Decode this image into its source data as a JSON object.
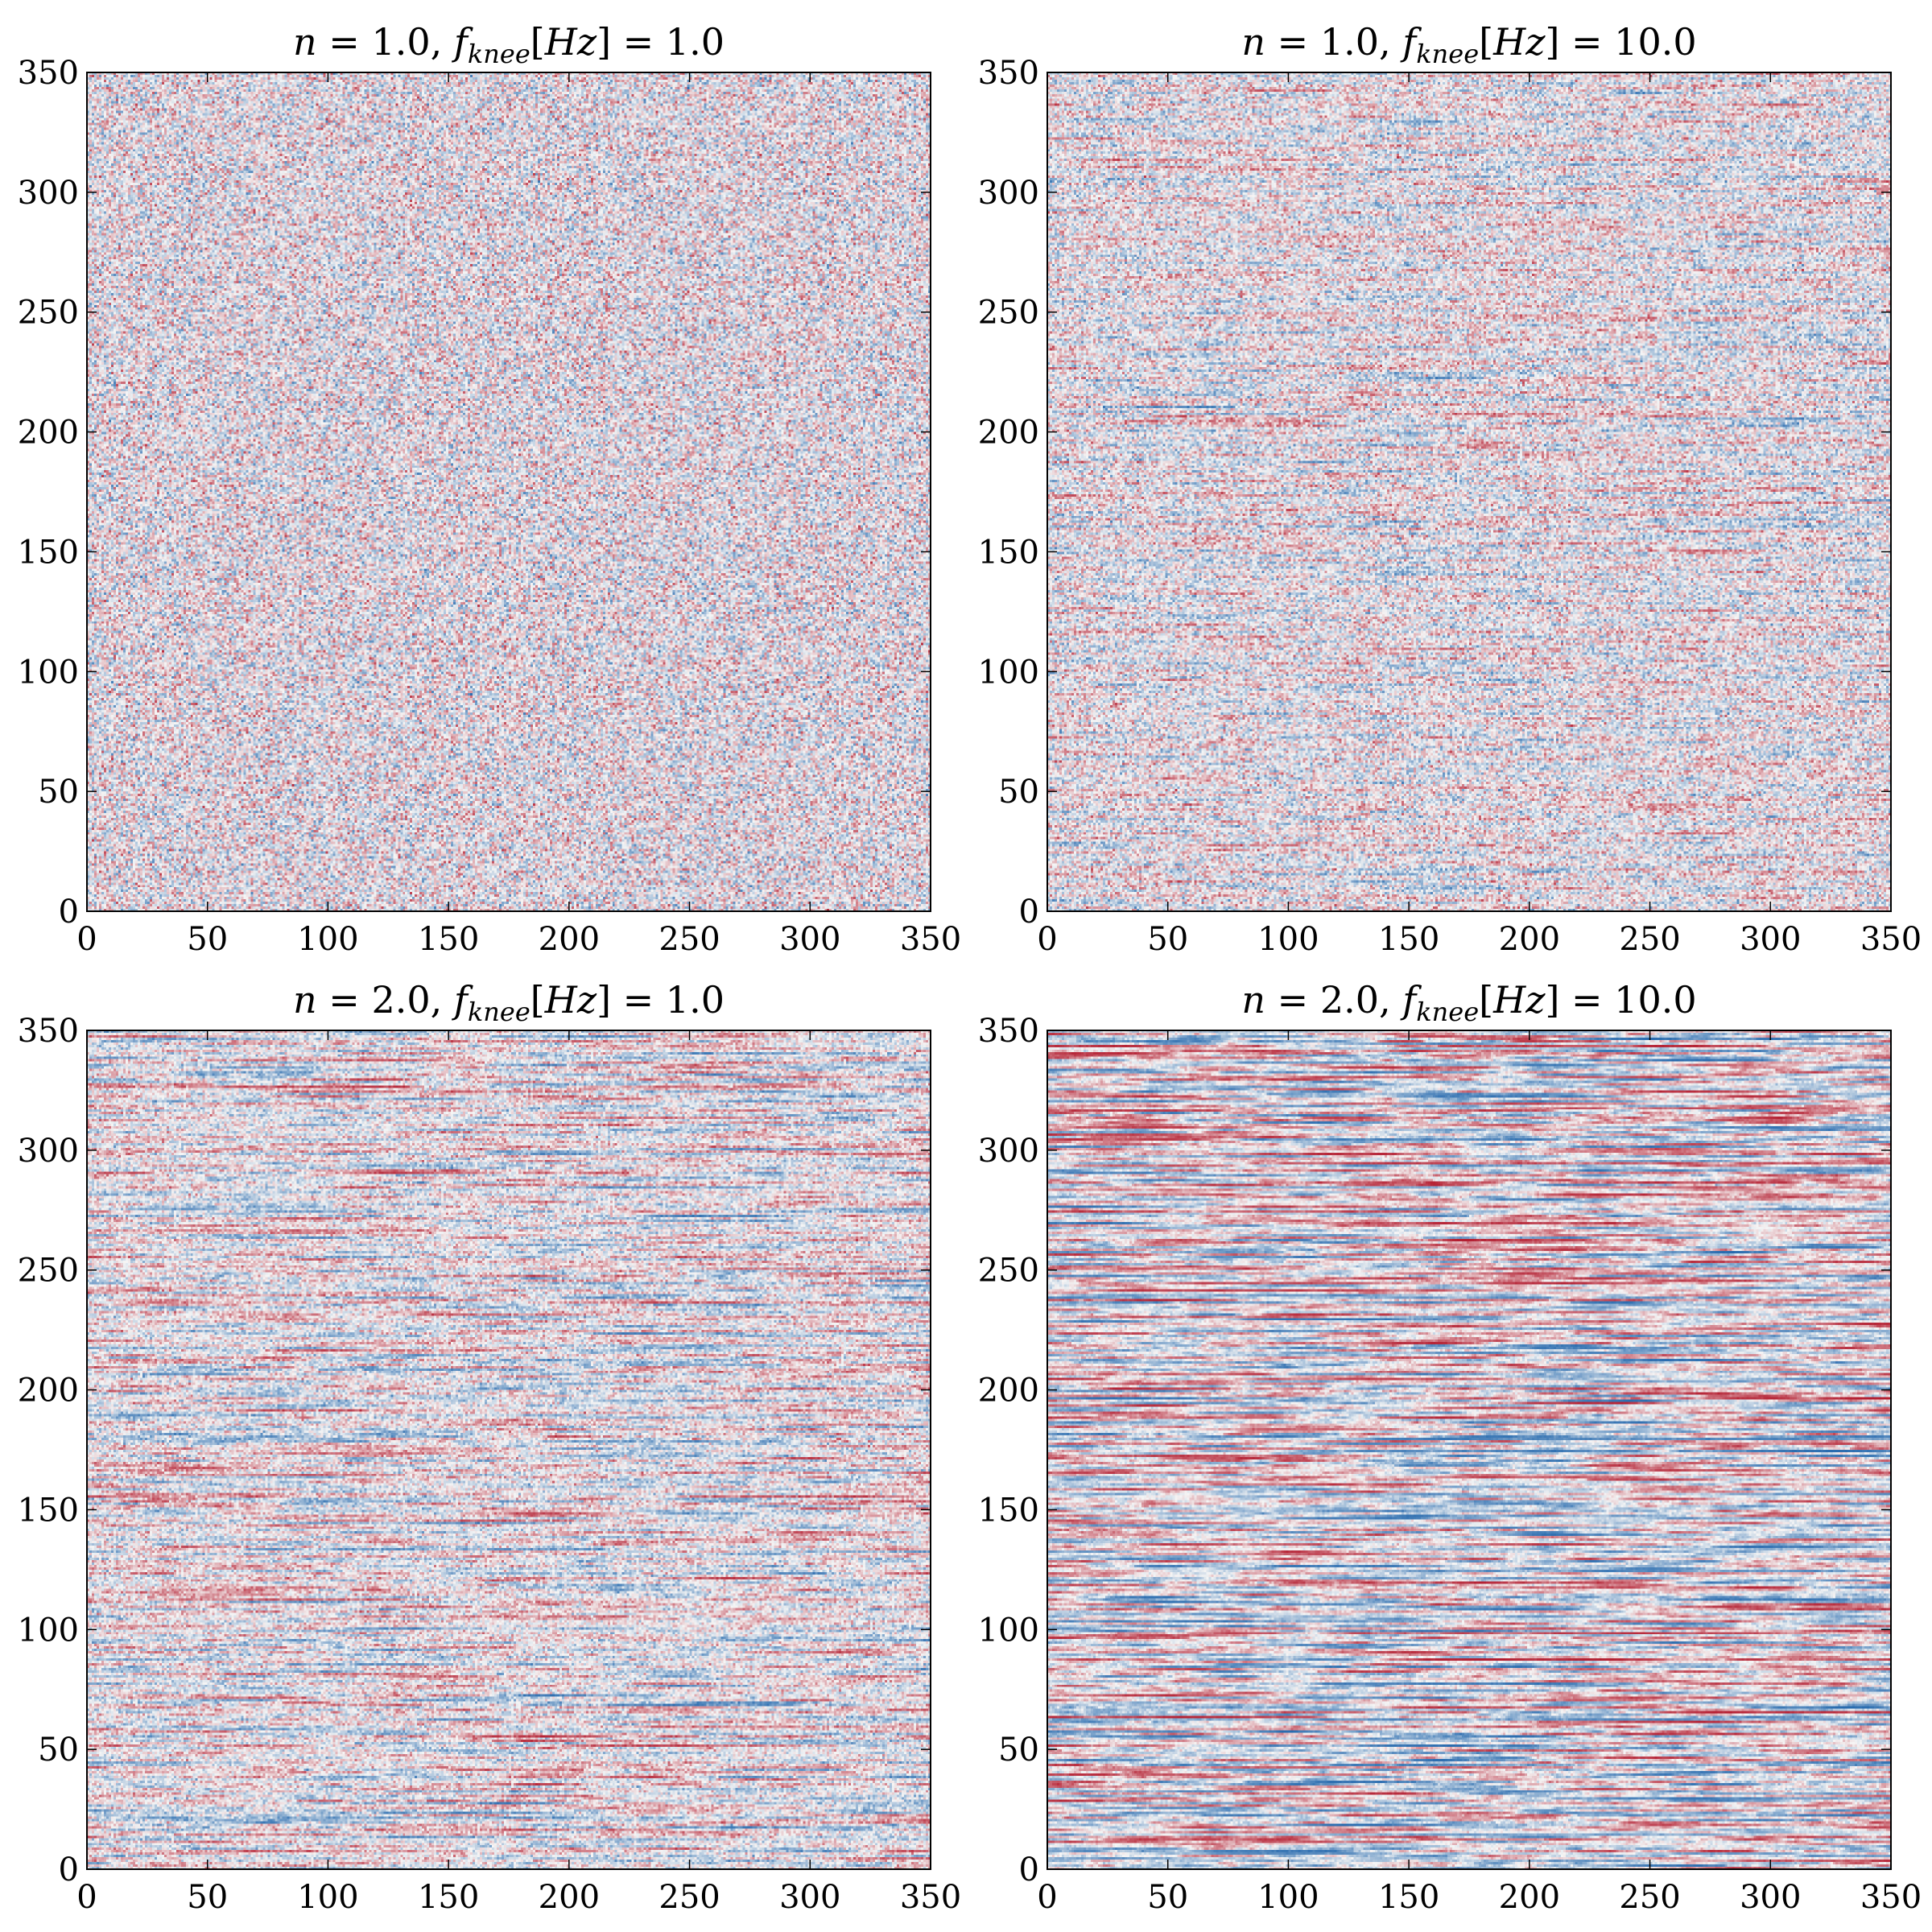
{
  "chart_data": [
    {
      "type": "heatmap",
      "title": "n = 1.0, f_knee[Hz] = 1.0",
      "title_parts": {
        "n_label": "n",
        "n_value": "1.0",
        "f_label": "f",
        "f_sub": "knee",
        "f_unit": "[Hz]",
        "f_value": "1.0"
      },
      "xlim": [
        0,
        350
      ],
      "ylim": [
        0,
        350
      ],
      "xticks": [
        0,
        50,
        100,
        150,
        200,
        250,
        300,
        350
      ],
      "yticks": [
        0,
        50,
        100,
        150,
        200,
        250,
        300,
        350
      ],
      "colormap": "diverging blue-white-red",
      "streak_strength": 0.1
    },
    {
      "type": "heatmap",
      "title": "n = 1.0, f_knee[Hz] = 10.0",
      "title_parts": {
        "n_label": "n",
        "n_value": "1.0",
        "f_label": "f",
        "f_sub": "knee",
        "f_unit": "[Hz]",
        "f_value": "10.0"
      },
      "xlim": [
        0,
        350
      ],
      "ylim": [
        0,
        350
      ],
      "xticks": [
        0,
        50,
        100,
        150,
        200,
        250,
        300,
        350
      ],
      "yticks": [
        0,
        50,
        100,
        150,
        200,
        250,
        300,
        350
      ],
      "colormap": "diverging blue-white-red",
      "streak_strength": 0.45
    },
    {
      "type": "heatmap",
      "title": "n = 2.0, f_knee[Hz] = 1.0",
      "title_parts": {
        "n_label": "n",
        "n_value": "2.0",
        "f_label": "f",
        "f_sub": "knee",
        "f_unit": "[Hz]",
        "f_value": "1.0"
      },
      "xlim": [
        0,
        350
      ],
      "ylim": [
        0,
        350
      ],
      "xticks": [
        0,
        50,
        100,
        150,
        200,
        250,
        300,
        350
      ],
      "yticks": [
        0,
        50,
        100,
        150,
        200,
        250,
        300,
        350
      ],
      "colormap": "diverging blue-white-red",
      "streak_strength": 0.65
    },
    {
      "type": "heatmap",
      "title": "n = 2.0, f_knee[Hz] = 10.0",
      "title_parts": {
        "n_label": "n",
        "n_value": "2.0",
        "f_label": "f",
        "f_sub": "knee",
        "f_unit": "[Hz]",
        "f_value": "10.0"
      },
      "xlim": [
        0,
        350
      ],
      "ylim": [
        0,
        350
      ],
      "xticks": [
        0,
        50,
        100,
        150,
        200,
        250,
        300,
        350
      ],
      "yticks": [
        0,
        50,
        100,
        150,
        200,
        250,
        300,
        350
      ],
      "colormap": "diverging blue-white-red",
      "streak_strength": 0.92
    }
  ],
  "colors": {
    "negative": "#2166ac",
    "neutral": "#f5f5f5",
    "positive": "#b2182b",
    "axis": "#000000"
  }
}
